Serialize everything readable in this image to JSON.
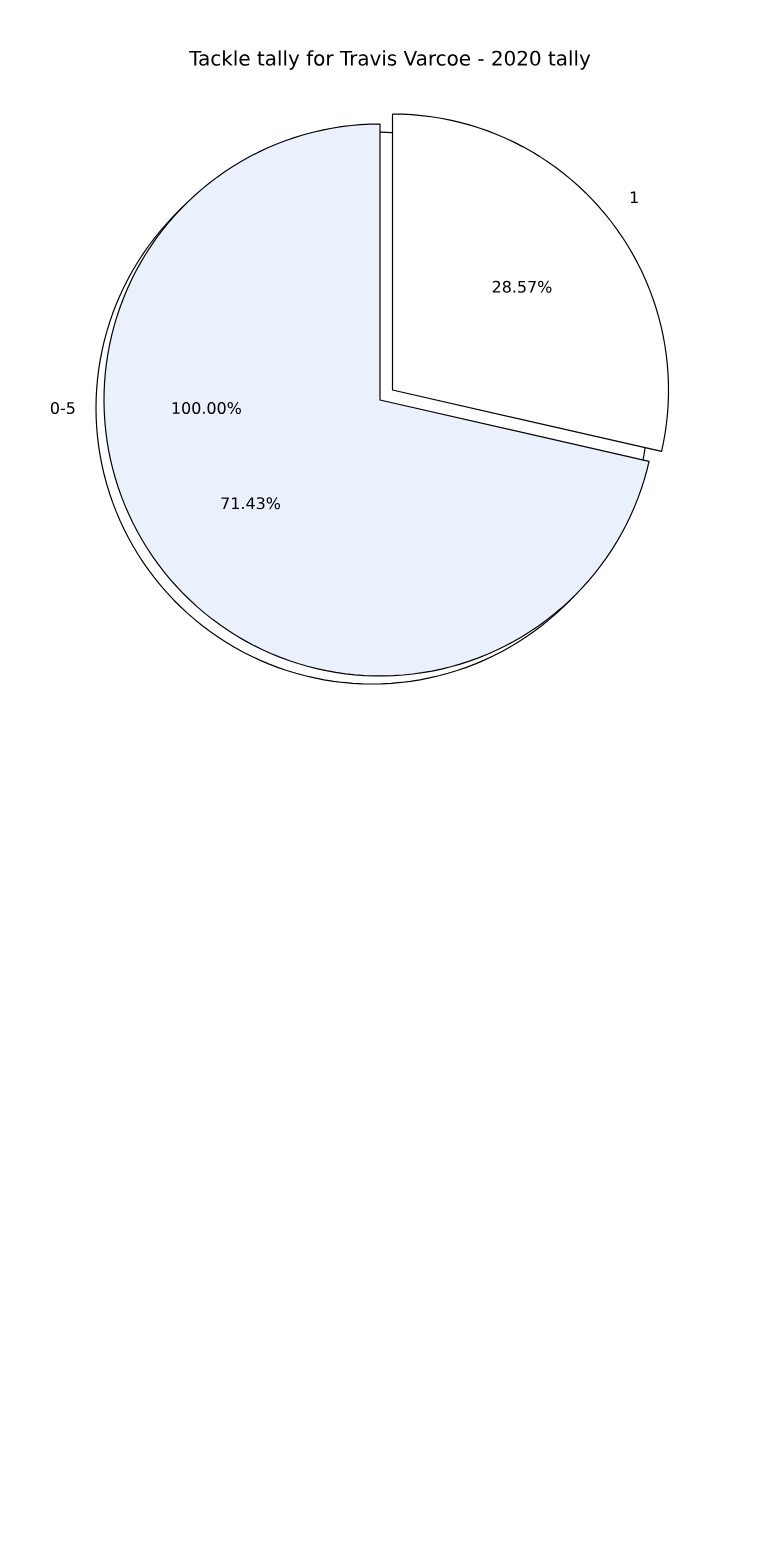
{
  "chart_data": [
    {
      "type": "pie",
      "title": "Tackle tally for Travis Varcoe - 2020 tally",
      "categories": [
        "0-5"
      ],
      "values": [
        100
      ],
      "colors": [
        "#ffffff"
      ],
      "value_labels": [
        "100.00%"
      ]
    },
    {
      "type": "pie",
      "categories": [
        "1",
        null
      ],
      "values": [
        28.57,
        71.43
      ],
      "colors": [
        "#ffffff",
        "#eaf1fd"
      ],
      "value_labels": [
        "28.57%",
        "71.43%"
      ]
    }
  ]
}
